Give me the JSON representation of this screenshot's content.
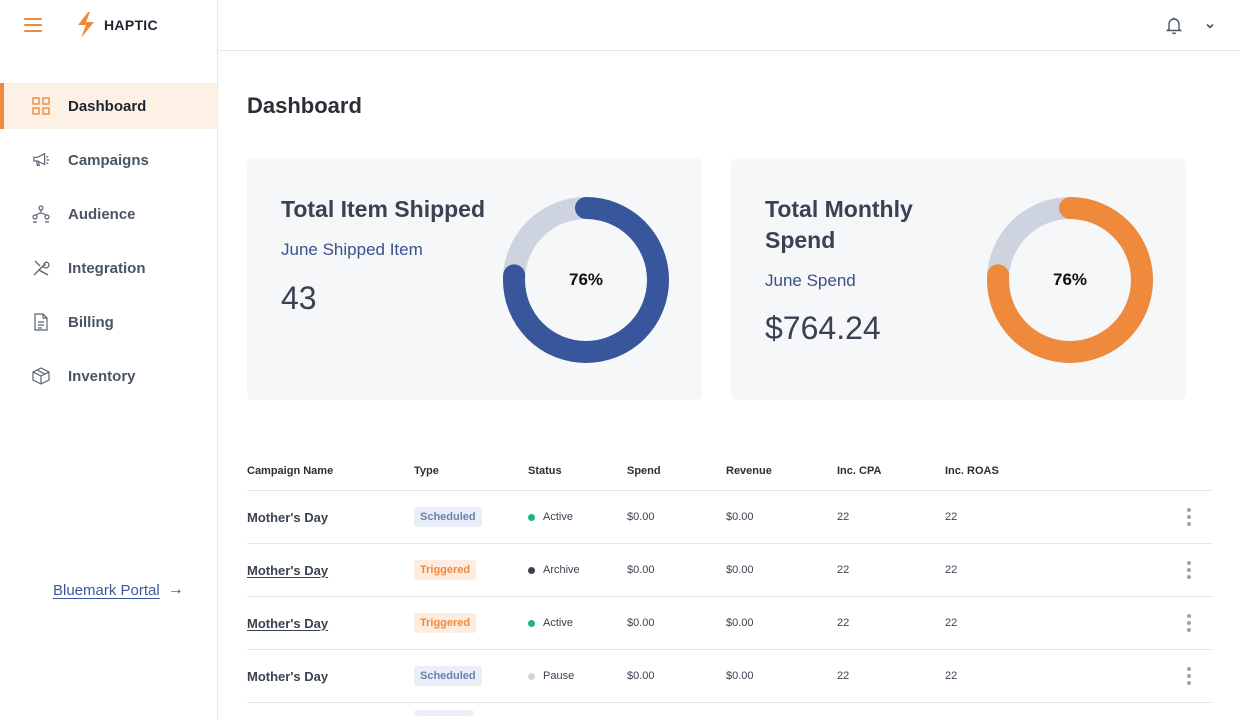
{
  "brand": {
    "name": "HAPTIC",
    "accent": "#ef8a3c"
  },
  "sidebar": {
    "items": [
      {
        "label": "Dashboard",
        "icon": "grid-icon",
        "active": true
      },
      {
        "label": "Campaigns",
        "icon": "megaphone-icon",
        "active": false
      },
      {
        "label": "Audience",
        "icon": "audience-icon",
        "active": false
      },
      {
        "label": "Integration",
        "icon": "tools-icon",
        "active": false
      },
      {
        "label": "Billing",
        "icon": "document-icon",
        "active": false
      },
      {
        "label": "Inventory",
        "icon": "box-icon",
        "active": false
      }
    ],
    "portal_link": "Bluemark Portal"
  },
  "header": {
    "bell_icon": "bell-icon",
    "menu_icon": "chevron-down-icon"
  },
  "main": {
    "title": "Dashboard",
    "cards": [
      {
        "title": "Total Item Shipped",
        "subtitle": "June Shipped Item",
        "value": "43",
        "percent": 76,
        "percent_label": "76%",
        "color": "#38569c",
        "track": "#cdd4df"
      },
      {
        "title": "Total Monthly Spend",
        "subtitle": "June Spend",
        "value": "$764.24",
        "percent": 76,
        "percent_label": "76%",
        "color": "#ef8a3c",
        "track": "#cdd4df"
      }
    ]
  },
  "table": {
    "columns": [
      "Campaign Name",
      "Type",
      "Status",
      "Spend",
      "Revenue",
      "Inc. CPA",
      "Inc. ROAS"
    ],
    "rows": [
      {
        "name": "Mother's Day",
        "type": "Scheduled",
        "status": "Active",
        "status_color": "#1fb57a",
        "spend": "$0.00",
        "revenue": "$0.00",
        "cpa": "22",
        "roas": "22"
      },
      {
        "name": "Mother's Day",
        "type": "Triggered",
        "status": "Archive",
        "status_color": "#3a4252",
        "spend": "$0.00",
        "revenue": "$0.00",
        "cpa": "22",
        "roas": "22"
      },
      {
        "name": "Mother's Day",
        "type": "Triggered",
        "status": "Active",
        "status_color": "#1fb57a",
        "spend": "$0.00",
        "revenue": "$0.00",
        "cpa": "22",
        "roas": "22"
      },
      {
        "name": "Mother's Day",
        "type": "Scheduled",
        "status": "Pause",
        "status_color": "#cdd4df",
        "spend": "$0.00",
        "revenue": "$0.00",
        "cpa": "22",
        "roas": "22"
      }
    ]
  }
}
